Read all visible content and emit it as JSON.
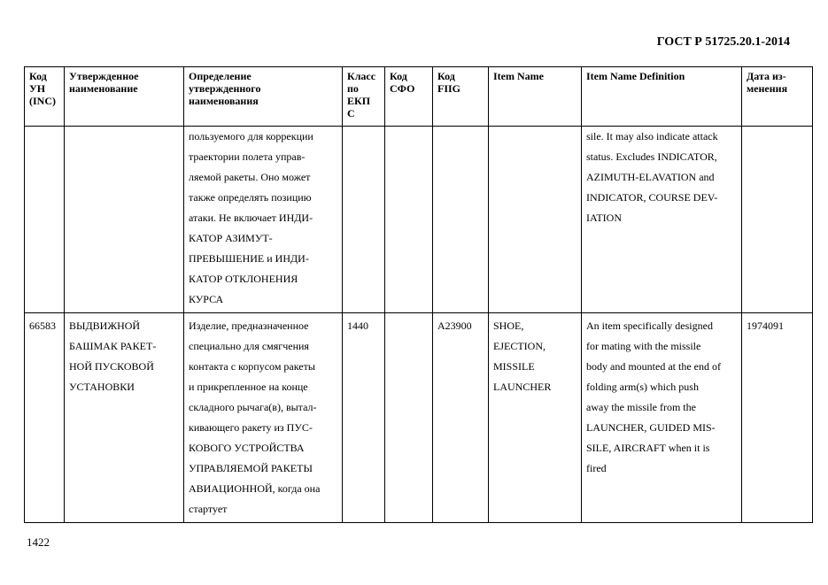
{
  "header": {
    "doc_id": "ГОСТ Р 51725.20.1-2014"
  },
  "table": {
    "columns": [
      [
        "Код",
        "УН",
        "(INC)"
      ],
      [
        "Утвержденное",
        "наименование"
      ],
      [
        "Определение",
        "утвержденного",
        "наименования"
      ],
      [
        "Класс",
        "по",
        "ЕКП",
        "С"
      ],
      [
        "Код",
        "СФО"
      ],
      [
        "Код",
        "FIIG"
      ],
      [
        "Item Name"
      ],
      [
        "Item Name Definition"
      ],
      [
        "Дата из-",
        "менения"
      ]
    ],
    "rows": [
      {
        "cells": [
          [],
          [],
          [
            "пользуемого для коррекции",
            "траектории полета управ-",
            "ляемой ракеты. Оно может",
            "также определять позицию",
            "атаки. Не включает ИНДИ-",
            "КАТОР АЗИМУТ-",
            "ПРЕВЫШЕНИЕ и ИНДИ-",
            "КАТОР ОТКЛОНЕНИЯ",
            "КУРСА"
          ],
          [],
          [],
          [],
          [],
          [
            "sile. It may also indicate attack",
            "status. Excludes INDICATOR,",
            "AZIMUTH-ELAVATION and",
            "INDICATOR, COURSE DEV-",
            "IATION"
          ],
          []
        ]
      },
      {
        "cells": [
          [
            "66583"
          ],
          [
            "ВЫДВИЖНОЙ",
            "БАШМАК РАКЕТ-",
            "НОЙ ПУСКОВОЙ",
            "УСТАНОВКИ"
          ],
          [
            "Изделие, предназначенное",
            "специально для смягчения",
            "контакта с корпусом ракеты",
            "и прикрепленное на конце",
            "складного рычага(в), вытал-",
            "кивающего ракету из ПУС-",
            "КОВОГО УСТРОЙСТВА",
            "УПРАВЛЯЕМОЙ РАКЕТЫ",
            "АВИАЦИОННОЙ, когда она",
            "стартует"
          ],
          [
            "1440"
          ],
          [],
          [
            "A23900"
          ],
          [
            "SHOE,",
            "EJECTION,",
            "MISSILE",
            "LAUNCHER"
          ],
          [
            "An item specifically designed",
            "for mating with the missile",
            "body and mounted at the end of",
            "folding arm(s) which push",
            "away the missile from the",
            "LAUNCHER, GUIDED MIS-",
            "SILE, AIRCRAFT when it is",
            "fired"
          ],
          [
            "1974091"
          ]
        ]
      }
    ]
  },
  "footer": {
    "page_number": "1422"
  }
}
